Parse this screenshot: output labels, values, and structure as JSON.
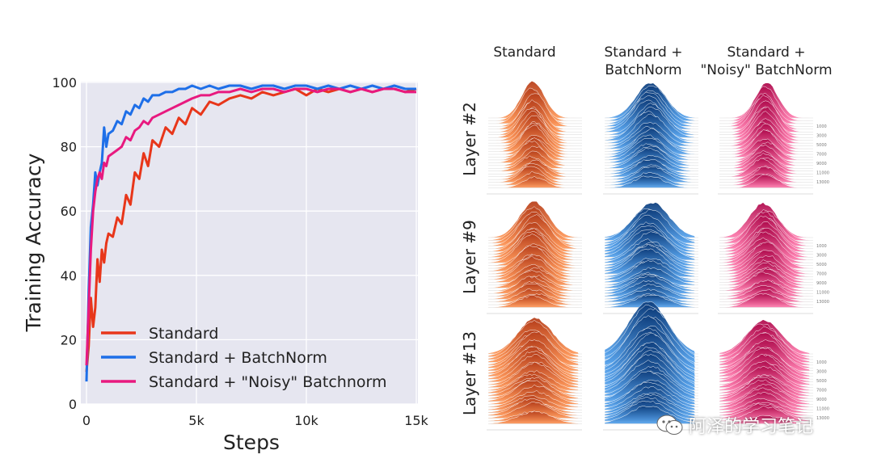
{
  "chart_data": [
    {
      "type": "line",
      "xlabel": "Steps",
      "ylabel": "Training Accuracy",
      "xlim": [
        0,
        15000
      ],
      "ylim": [
        0,
        100
      ],
      "x_ticks": [
        0,
        5000,
        10000,
        15000
      ],
      "x_tick_labels": [
        "0",
        "5k",
        "10k",
        "15k"
      ],
      "y_ticks": [
        0,
        20,
        40,
        60,
        80,
        100
      ],
      "y_tick_labels": [
        "0",
        "20",
        "40",
        "60",
        "80",
        "100"
      ],
      "grid": true,
      "legend_position": "bottom-right",
      "x": [
        0,
        100,
        200,
        300,
        400,
        500,
        600,
        700,
        800,
        900,
        1000,
        1200,
        1400,
        1600,
        1800,
        2000,
        2200,
        2400,
        2600,
        2800,
        3000,
        3300,
        3600,
        3900,
        4200,
        4500,
        4800,
        5200,
        5600,
        6000,
        6500,
        7000,
        7500,
        8000,
        8500,
        9000,
        9500,
        10000,
        10500,
        11000,
        11500,
        12000,
        12500,
        13000,
        13500,
        14000,
        14500,
        15000
      ],
      "series": [
        {
          "name": "Standard",
          "color": "#e8361a",
          "values": [
            10,
            18,
            33,
            24,
            30,
            45,
            38,
            48,
            44,
            50,
            53,
            52,
            58,
            56,
            65,
            62,
            72,
            70,
            78,
            74,
            82,
            80,
            86,
            84,
            89,
            87,
            92,
            90,
            94,
            93,
            95,
            96,
            95,
            97,
            96,
            97,
            98,
            96,
            98,
            97,
            98,
            97,
            98,
            97,
            98,
            98,
            97,
            98
          ]
        },
        {
          "name": "Standard + BatchNorm",
          "color": "#1e6fe8",
          "values": [
            7,
            35,
            55,
            62,
            72,
            68,
            72,
            75,
            86,
            80,
            84,
            85,
            88,
            87,
            91,
            90,
            93,
            92,
            95,
            94,
            96,
            96,
            97,
            97,
            98,
            98,
            99,
            98,
            99,
            98,
            99,
            99,
            98,
            99,
            99,
            98,
            99,
            99,
            98,
            99,
            98,
            99,
            98,
            99,
            98,
            99,
            98,
            98
          ]
        },
        {
          "name": "Standard + \"Noisy\" Batchnorm",
          "color": "#e8197f",
          "values": [
            12,
            30,
            48,
            60,
            66,
            70,
            72,
            70,
            75,
            74,
            77,
            78,
            79,
            80,
            83,
            82,
            85,
            86,
            88,
            87,
            89,
            90,
            91,
            92,
            93,
            94,
            95,
            96,
            96,
            97,
            97,
            98,
            97,
            98,
            98,
            97,
            98,
            98,
            97,
            98,
            98,
            97,
            98,
            97,
            98,
            98,
            97,
            97
          ]
        }
      ]
    },
    {
      "type": "other",
      "column_labels": [
        "Standard",
        "Standard +\nBatchNorm",
        "Standard +\n\"Noisy\" BatchNorm"
      ],
      "row_labels": [
        "Layer #2",
        "Layer #9",
        "Layer #13"
      ],
      "panel_colors": [
        "#f0703a",
        "#2a6fb8",
        "#e23c7c"
      ],
      "step_labels": [
        "1000",
        "3000",
        "5000",
        "7000",
        "9000",
        "11000",
        "13000"
      ]
    }
  ],
  "watermark": {
    "text": "阿泽的学习笔记"
  }
}
